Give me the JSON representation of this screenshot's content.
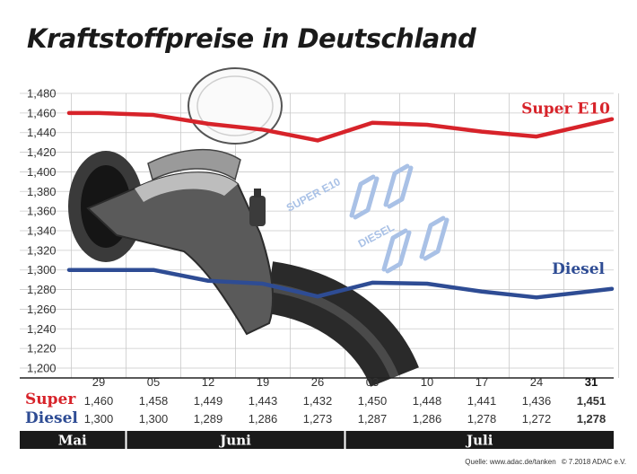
{
  "chart_data": {
    "type": "line",
    "title": "Kraftstoffpreise in Deutschland",
    "categories": [
      "29",
      "05",
      "12",
      "19",
      "26",
      "03",
      "10",
      "17",
      "24",
      "31"
    ],
    "months": [
      {
        "label": "Mai",
        "from": 0,
        "to": 0
      },
      {
        "label": "Juni",
        "from": 1,
        "to": 4
      },
      {
        "label": "Juli",
        "from": 5,
        "to": 9
      }
    ],
    "ylim": [
      1.2,
      1.48
    ],
    "yticks": [
      "1,200",
      "1,220",
      "1,240",
      "1,260",
      "1,280",
      "1,300",
      "1,320",
      "1,340",
      "1,360",
      "1,380",
      "1,400",
      "1,420",
      "1,440",
      "1,460",
      "1,480"
    ],
    "series": [
      {
        "name": "Super E10",
        "row_label": "Super",
        "color": "#d7232a",
        "values": [
          1.46,
          1.458,
          1.449,
          1.443,
          1.432,
          1.45,
          1.448,
          1.441,
          1.436,
          1.451
        ],
        "labels": [
          "1,460",
          "1,458",
          "1,449",
          "1,443",
          "1,432",
          "1,450",
          "1,448",
          "1,441",
          "1,436",
          "1,451"
        ]
      },
      {
        "name": "Diesel",
        "row_label": "Diesel",
        "color": "#2e4c94",
        "values": [
          1.3,
          1.3,
          1.289,
          1.286,
          1.273,
          1.287,
          1.286,
          1.278,
          1.272,
          1.278
        ],
        "labels": [
          "1,300",
          "1,300",
          "1,289",
          "1,286",
          "1,273",
          "1,287",
          "1,286",
          "1,278",
          "1,272",
          "1,278"
        ]
      }
    ],
    "grid": true,
    "legend": "inline-right"
  },
  "display_words": {
    "super": "SUPER E10",
    "diesel": "DIESEL"
  },
  "source": {
    "text": "Quelle: www.adac.de/tanken",
    "copyright": "© 7.2018 ADAC e.V."
  },
  "colors": {
    "month_bar": "#1a1a1a",
    "digits": "#a9c1e6"
  }
}
